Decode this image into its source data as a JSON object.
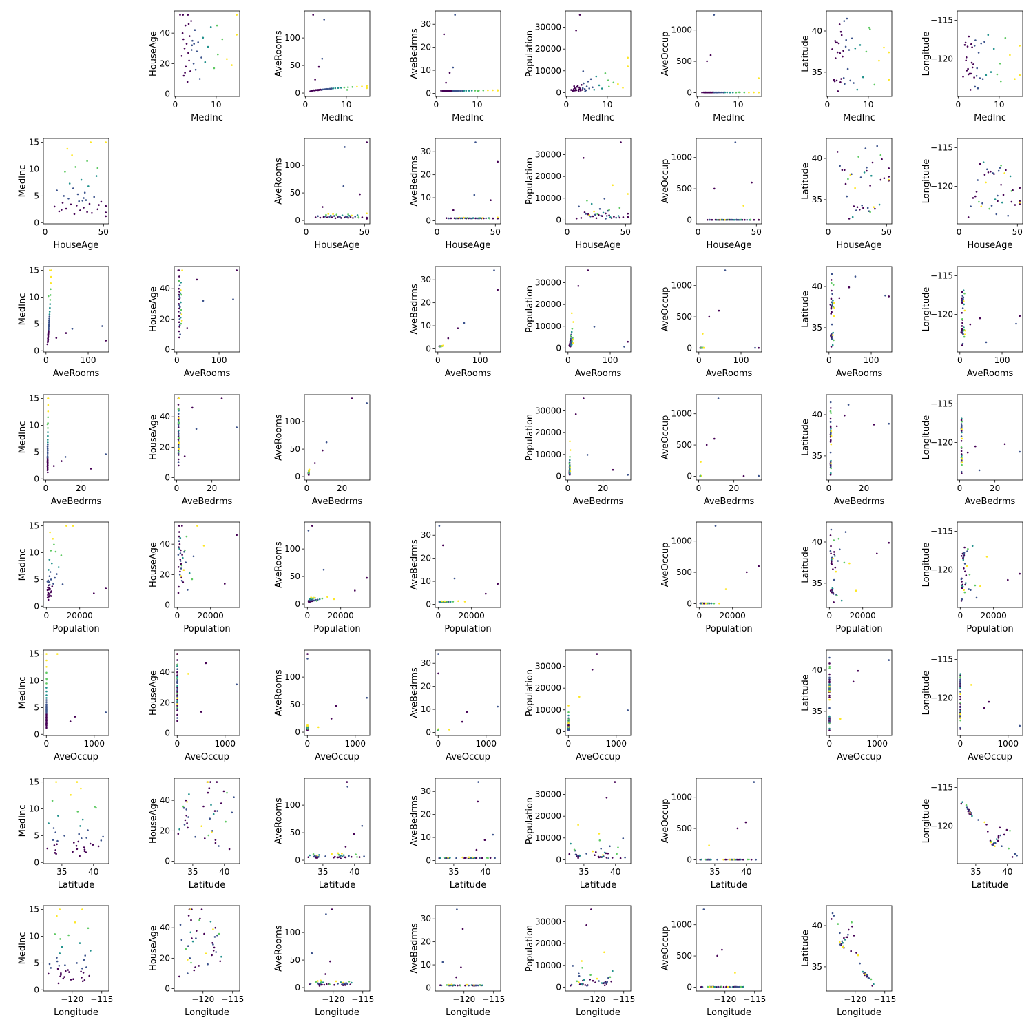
{
  "chart_data": {
    "type": "scatter",
    "layout": "pairwise scatter matrix (off-diagonal panels only)",
    "variables": [
      "MedInc",
      "HouseAge",
      "AveRooms",
      "AveBedrms",
      "Population",
      "AveOccup",
      "Latitude",
      "Longitude"
    ],
    "colormap": [
      "#440154",
      "#3b528b",
      "#21918c",
      "#5ec962",
      "#fde725"
    ],
    "color_variable": "MedInc",
    "grid": false,
    "legend": "none",
    "marker_size": "small",
    "axes": {
      "MedInc": {
        "range": [
          0.5,
          15.0001
        ],
        "ticks": [
          0,
          5,
          10,
          15
        ],
        "ticks_x": [
          0,
          10
        ],
        "ticks_y": [
          0,
          5,
          10,
          15
        ]
      },
      "HouseAge": {
        "range": [
          1,
          52
        ],
        "ticks": [
          0,
          20,
          40
        ],
        "ticks_x": [
          0,
          50
        ],
        "ticks_y": [
          0,
          20,
          40
        ]
      },
      "AveRooms": {
        "range": [
          0.85,
          141.9
        ],
        "ticks": [
          0,
          50,
          100
        ],
        "ticks_x": [
          0,
          100
        ],
        "ticks_y": [
          0,
          50,
          100
        ]
      },
      "AveBedrms": {
        "range": [
          0.33,
          34.07
        ],
        "ticks": [
          0,
          10,
          20,
          30
        ],
        "ticks_x": [
          0,
          20
        ],
        "ticks_y": [
          0,
          10,
          20,
          30
        ]
      },
      "Population": {
        "range": [
          3,
          35682
        ],
        "ticks": [
          0,
          10000,
          20000,
          30000
        ],
        "ticks_x": [
          0,
          20000
        ],
        "ticks_y": [
          0,
          10000,
          20000,
          30000
        ]
      },
      "AveOccup": {
        "range": [
          0.69,
          1243.3
        ],
        "ticks": [
          0,
          500,
          1000
        ],
        "ticks_x": [
          0,
          1000
        ],
        "ticks_y": [
          0,
          500,
          1000
        ]
      },
      "Latitude": {
        "range": [
          32.54,
          41.95
        ],
        "ticks": [
          35,
          40
        ],
        "ticks_x": [
          35,
          40
        ],
        "ticks_y": [
          35,
          40
        ]
      },
      "Longitude": {
        "range": [
          -124.35,
          -114.31
        ],
        "ticks": [
          -120,
          -115
        ],
        "ticks_x": [
          -120,
          -115
        ],
        "ticks_y": [
          -120,
          -115
        ]
      }
    },
    "points": {
      "MedInc": [
        1.2,
        1.6,
        1.8,
        2.0,
        2.1,
        2.3,
        2.5,
        2.6,
        2.8,
        3.0,
        3.1,
        3.2,
        3.4,
        3.5,
        3.7,
        3.9,
        4.0,
        4.2,
        4.5,
        4.8,
        5.0,
        5.3,
        5.6,
        6.0,
        6.4,
        6.8,
        7.3,
        8.0,
        8.7,
        9.5,
        10.4,
        11.5,
        12.6,
        13.8,
        15.0,
        15.0,
        2.4,
        3.3,
        4.1,
        10.2,
        4.6,
        1.9
      ],
      "HouseAge": [
        52,
        25,
        40,
        36,
        12,
        30,
        45,
        18,
        33,
        8,
        52,
        27,
        22,
        38,
        15,
        48,
        29,
        35,
        20,
        42,
        16,
        28,
        34,
        10,
        24,
        37,
        21,
        31,
        44,
        17,
        26,
        36,
        23,
        19,
        52,
        39,
        14,
        46,
        32,
        45,
        33,
        52
      ],
      "AveRooms": [
        3.2,
        4.1,
        4.5,
        4.8,
        5.0,
        4.6,
        5.2,
        5.4,
        5.3,
        5.6,
        5.1,
        5.8,
        5.5,
        6.0,
        6.2,
        5.7,
        6.1,
        6.4,
        6.6,
        6.9,
        7.0,
        7.3,
        7.5,
        7.8,
        8.1,
        8.4,
        8.8,
        9.2,
        9.6,
        10.0,
        10.5,
        11.0,
        11.5,
        12.0,
        12.8,
        9.0,
        24.5,
        47.5,
        62.4,
        5.8,
        133.4,
        141.9
      ],
      "AveBedrms": [
        1.1,
        1.0,
        1.05,
        1.02,
        1.08,
        1.0,
        1.1,
        1.04,
        1.06,
        1.12,
        0.98,
        1.03,
        1.07,
        1.02,
        1.1,
        1.0,
        1.05,
        1.04,
        1.08,
        1.06,
        1.02,
        1.1,
        1.07,
        1.04,
        1.09,
        1.12,
        1.11,
        1.15,
        1.2,
        1.18,
        1.22,
        1.25,
        1.3,
        1.35,
        1.4,
        1.2,
        4.6,
        8.9,
        11.2,
        1.0,
        34.07,
        25.6
      ],
      "Population": [
        1200,
        800,
        1500,
        2100,
        950,
        1800,
        1100,
        2600,
        3000,
        700,
        1400,
        2300,
        1700,
        900,
        3500,
        1250,
        2000,
        4200,
        1600,
        1050,
        2800,
        5100,
        1900,
        6200,
        2400,
        1300,
        7400,
        3300,
        1850,
        8900,
        2700,
        4600,
        3900,
        2200,
        12000,
        16000,
        28500,
        35682,
        9800,
        5600,
        640,
        2900
      ],
      "AveOccup": [
        2.8,
        3.1,
        2.5,
        3.4,
        2.9,
        3.6,
        2.7,
        3.0,
        3.2,
        2.6,
        2.4,
        3.3,
        3.0,
        2.8,
        3.5,
        2.9,
        3.1,
        2.7,
        3.8,
        2.6,
        3.0,
        3.2,
        2.9,
        3.4,
        2.8,
        3.1,
        3.6,
        2.7,
        2.5,
        3.0,
        4.2,
        3.3,
        2.9,
        3.1,
        2.8,
        230,
        502,
        599,
        1243.3,
        6.0,
        3.5,
        2.7
      ],
      "Latitude": [
        37.8,
        34.1,
        33.9,
        36.7,
        38.6,
        34.0,
        37.4,
        32.7,
        38.5,
        40.8,
        37.3,
        33.8,
        34.2,
        39.5,
        36.9,
        37.6,
        34.3,
        33.6,
        38.1,
        41.5,
        35.4,
        37.7,
        34.0,
        39.1,
        33.7,
        37.9,
        32.9,
        38.3,
        34.4,
        37.5,
        40.2,
        33.5,
        36.4,
        38.0,
        37.4,
        34.1,
        38.6,
        39.9,
        41.2,
        40.4,
        38.9,
        38.8
      ],
      "Longitude": [
        -122.3,
        -118.2,
        -117.9,
        -119.8,
        -121.5,
        -118.4,
        -122.0,
        -117.1,
        -121.9,
        -124.0,
        -121.9,
        -118.1,
        -118.5,
        -121.1,
        -120.7,
        -122.4,
        -118.3,
        -117.6,
        -122.2,
        -123.8,
        -119.2,
        -122.5,
        -118.0,
        -122.6,
        -117.8,
        -122.1,
        -116.9,
        -121.7,
        -118.7,
        -122.0,
        -122.9,
        -117.3,
        -119.5,
        -122.6,
        -122.1,
        -118.3,
        -121.3,
        -120.5,
        -123.6,
        -120.6,
        -121.2,
        -120.2
      ]
    }
  }
}
